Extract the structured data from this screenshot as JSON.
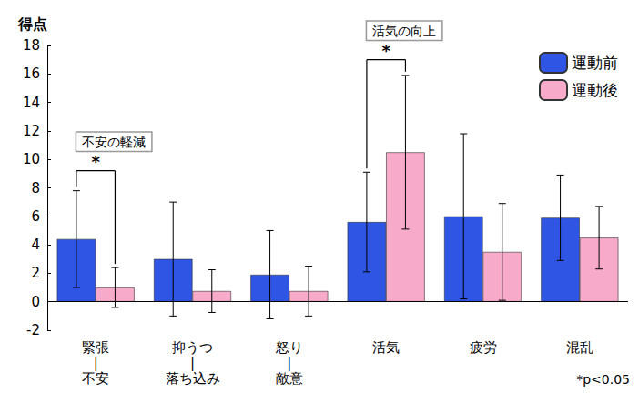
{
  "chart_data": {
    "type": "bar",
    "y_label": "得点",
    "categories": [
      "緊張\n|\n不安",
      "抑うつ\n|\n落ち込み",
      "怒り\n|\n敵意",
      "活気",
      "疲労",
      "混乱"
    ],
    "series": [
      {
        "name": "運動前",
        "color": "#2f55e4",
        "values": [
          4.4,
          3.0,
          1.9,
          5.6,
          6.0,
          5.9
        ],
        "errors": [
          3.4,
          4.0,
          3.1,
          3.5,
          5.8,
          3.0
        ]
      },
      {
        "name": "運動後",
        "color": "#f8aacb",
        "values": [
          1.0,
          0.75,
          0.75,
          10.5,
          3.5,
          4.5
        ],
        "errors": [
          1.4,
          1.5,
          1.75,
          5.4,
          3.4,
          2.2
        ]
      }
    ],
    "ylim": [
      -2,
      18
    ],
    "yticks": [
      -2,
      0,
      2,
      4,
      6,
      8,
      10,
      12,
      14,
      16,
      18
    ],
    "grid": false,
    "legend": "upper right",
    "annotations": [
      {
        "category": "緊張\n|\n不安",
        "text": "不安の軽減",
        "symbol": "*",
        "y": 9.2
      },
      {
        "category": "活気",
        "text": "活気の向上",
        "symbol": "*",
        "y": 17.0
      }
    ],
    "note": "*p<0.05"
  }
}
